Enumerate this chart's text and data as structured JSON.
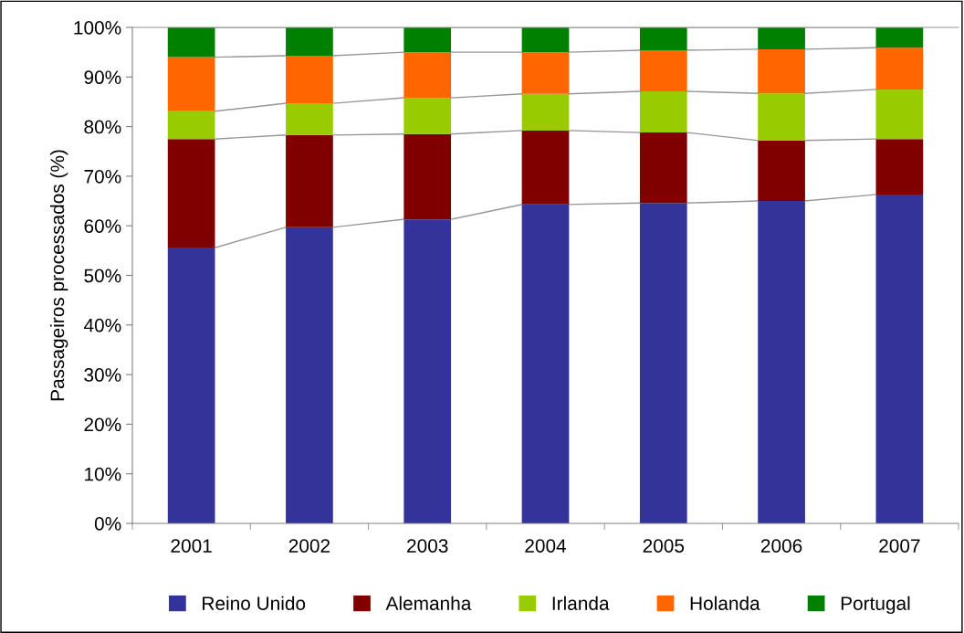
{
  "chart_data": {
    "type": "bar",
    "stacked": true,
    "ylabel": "Passageiros processados (%)",
    "categories": [
      "2001",
      "2002",
      "2003",
      "2004",
      "2005",
      "2006",
      "2007"
    ],
    "series": [
      {
        "name": "Reino Unido",
        "color": "#333399",
        "values": [
          55.6,
          59.7,
          61.3,
          64.3,
          64.6,
          65.0,
          66.3
        ]
      },
      {
        "name": "Alemanha",
        "color": "#800000",
        "values": [
          21.9,
          18.6,
          17.2,
          14.9,
          14.2,
          12.2,
          11.2
        ]
      },
      {
        "name": "Irlanda",
        "color": "#99cc00",
        "values": [
          5.6,
          6.4,
          7.3,
          7.4,
          8.3,
          9.5,
          10.0
        ]
      },
      {
        "name": "Holanda",
        "color": "#ff6600",
        "values": [
          10.9,
          9.6,
          9.2,
          8.4,
          8.3,
          8.9,
          8.4
        ]
      },
      {
        "name": "Portugal",
        "color": "#008000",
        "values": [
          6.0,
          5.7,
          5.0,
          5.0,
          4.6,
          4.4,
          4.1
        ]
      }
    ],
    "ylim": [
      0,
      100
    ],
    "yticks": [
      {
        "value": 0,
        "label": "0%"
      },
      {
        "value": 10,
        "label": "10%"
      },
      {
        "value": 20,
        "label": "20%"
      },
      {
        "value": 30,
        "label": "30%"
      },
      {
        "value": 40,
        "label": "40%"
      },
      {
        "value": 50,
        "label": "50%"
      },
      {
        "value": 60,
        "label": "60%"
      },
      {
        "value": 70,
        "label": "70%"
      },
      {
        "value": 80,
        "label": "80%"
      },
      {
        "value": 90,
        "label": "90%"
      },
      {
        "value": 100,
        "label": "100%"
      }
    ],
    "grid": false,
    "legend": "bottom"
  }
}
